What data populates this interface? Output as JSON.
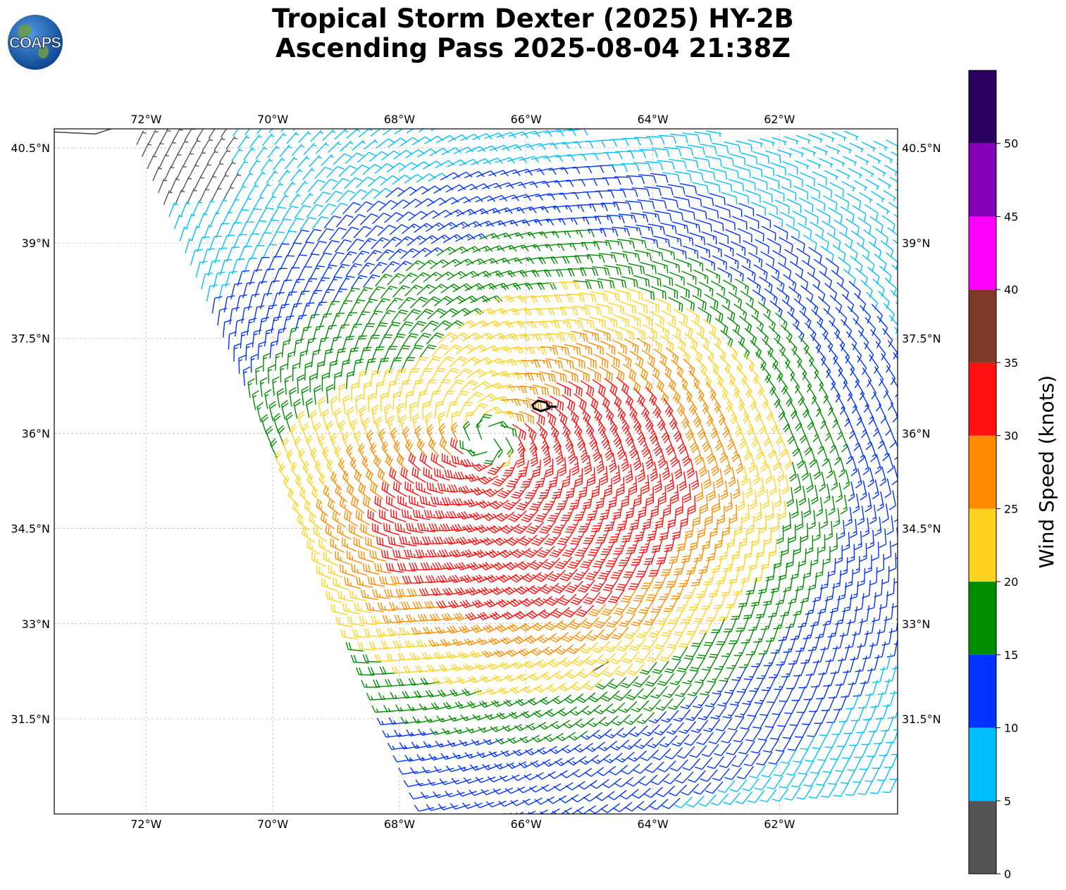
{
  "header": {
    "title_line1": "Tropical Storm Dexter (2025) HY-2B",
    "title_line2": "Ascending Pass 2025-08-04 21:38Z",
    "logo_text": "COAPS"
  },
  "map": {
    "lon_range": [
      -73.45,
      -60.1
    ],
    "lat_range": [
      30.0,
      40.8
    ],
    "lon_ticks": [
      -72,
      -70,
      -68,
      -66,
      -64,
      -62
    ],
    "lon_labels": [
      "72°W",
      "70°W",
      "68°W",
      "66°W",
      "64°W",
      "62°W"
    ],
    "lat_ticks": [
      31.5,
      33,
      34.5,
      36,
      37.5,
      39,
      40.5
    ],
    "lat_labels": [
      "31.5°N",
      "33°N",
      "34.5°N",
      "36°N",
      "37.5°N",
      "39°N",
      "40.5°N"
    ],
    "grid": true,
    "storm_center": {
      "lon": -66.6,
      "lat": 35.9
    },
    "features": [
      {
        "name": "Long Island coastline",
        "lon": [
          -73.45,
          -72.8,
          -72.4,
          -72.0,
          -71.9
        ],
        "lat": [
          40.75,
          40.72,
          40.85,
          40.9,
          40.95
        ]
      },
      {
        "name": "Bermuda",
        "lon": [
          -64.95,
          -64.7
        ],
        "lat": [
          32.25,
          32.4
        ]
      }
    ],
    "colors": {
      "land_outline": "#444444",
      "grid": "#b0b0b0",
      "storm_track": "#000000"
    }
  },
  "colorbar": {
    "label": "Wind Speed (knots)",
    "ticks": [
      0,
      5,
      10,
      15,
      20,
      25,
      30,
      35,
      40,
      45,
      50
    ],
    "bins": [
      {
        "min": 0,
        "max": 5,
        "color": "#555555"
      },
      {
        "min": 5,
        "max": 10,
        "color": "#00bfff"
      },
      {
        "min": 10,
        "max": 15,
        "color": "#0033ff"
      },
      {
        "min": 15,
        "max": 20,
        "color": "#008c00"
      },
      {
        "min": 20,
        "max": 25,
        "color": "#ffd21f"
      },
      {
        "min": 25,
        "max": 30,
        "color": "#ff8c00"
      },
      {
        "min": 30,
        "max": 35,
        "color": "#ff1010"
      },
      {
        "min": 35,
        "max": 40,
        "color": "#7f3a27"
      },
      {
        "min": 40,
        "max": 45,
        "color": "#ff00ff"
      },
      {
        "min": 45,
        "max": 50,
        "color": "#8400b8"
      },
      {
        "min": 50,
        "max": 55,
        "color": "#2b0060"
      }
    ]
  }
}
